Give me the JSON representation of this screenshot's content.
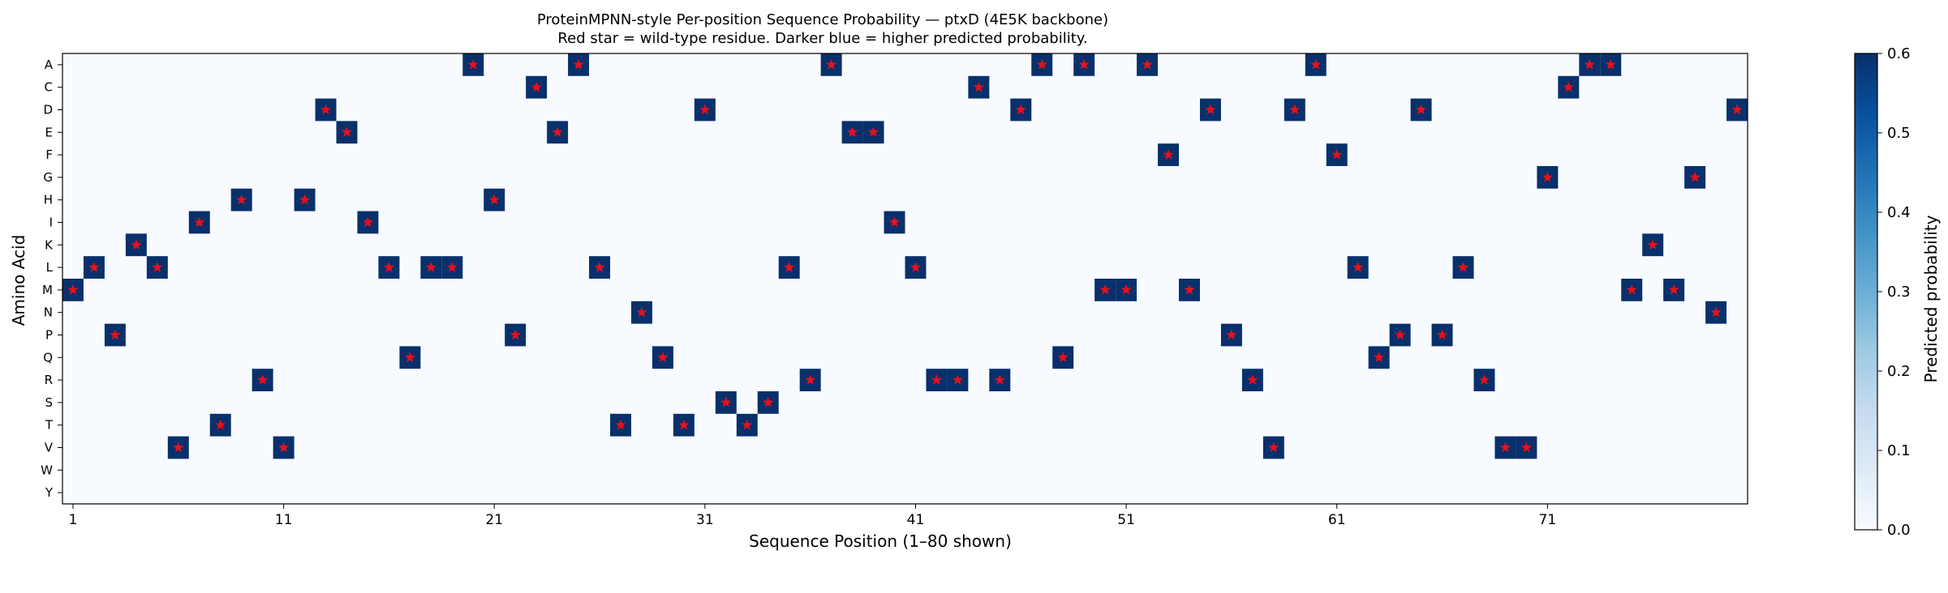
{
  "chart_data": {
    "type": "heatmap",
    "title_line1": "ProteinMPNN-style Per-position Sequence Probability — ptxD (4E5K backbone)",
    "title_line2": "Red star = wild-type residue. Darker blue = higher predicted probability.",
    "xlabel": "Sequence Position (1–80 shown)",
    "ylabel": "Amino Acid",
    "x_range": [
      1,
      80
    ],
    "x_ticks": [
      "1",
      "11",
      "21",
      "31",
      "41",
      "51",
      "61",
      "71"
    ],
    "x_tick_values": [
      1,
      11,
      21,
      31,
      41,
      51,
      61,
      71
    ],
    "amino_acids": [
      "A",
      "C",
      "D",
      "E",
      "F",
      "G",
      "H",
      "I",
      "K",
      "L",
      "M",
      "N",
      "P",
      "Q",
      "R",
      "S",
      "T",
      "V",
      "W",
      "Y"
    ],
    "sequence": "MLPKLVITHRVHDEILQLLAHPCEALTNQTDSTSLRAEEILRRCRDAQAMMAFMDPRVDAFLQPDPLRVVGCAAMKMGND",
    "wildtype_probability": 0.6,
    "background_probability": 0.0,
    "colorbar": {
      "label": "Predicted probability",
      "min": 0.0,
      "max": 0.6,
      "ticks": [
        "0.0",
        "0.1",
        "0.2",
        "0.3",
        "0.4",
        "0.5",
        "0.6"
      ],
      "tick_values": [
        0.0,
        0.1,
        0.2,
        0.3,
        0.4,
        0.5,
        0.6
      ],
      "colormap": "Blues"
    },
    "colors": {
      "low": "#f7fbff",
      "high": "#08306b",
      "star": "#e8101c"
    },
    "grid": false
  }
}
